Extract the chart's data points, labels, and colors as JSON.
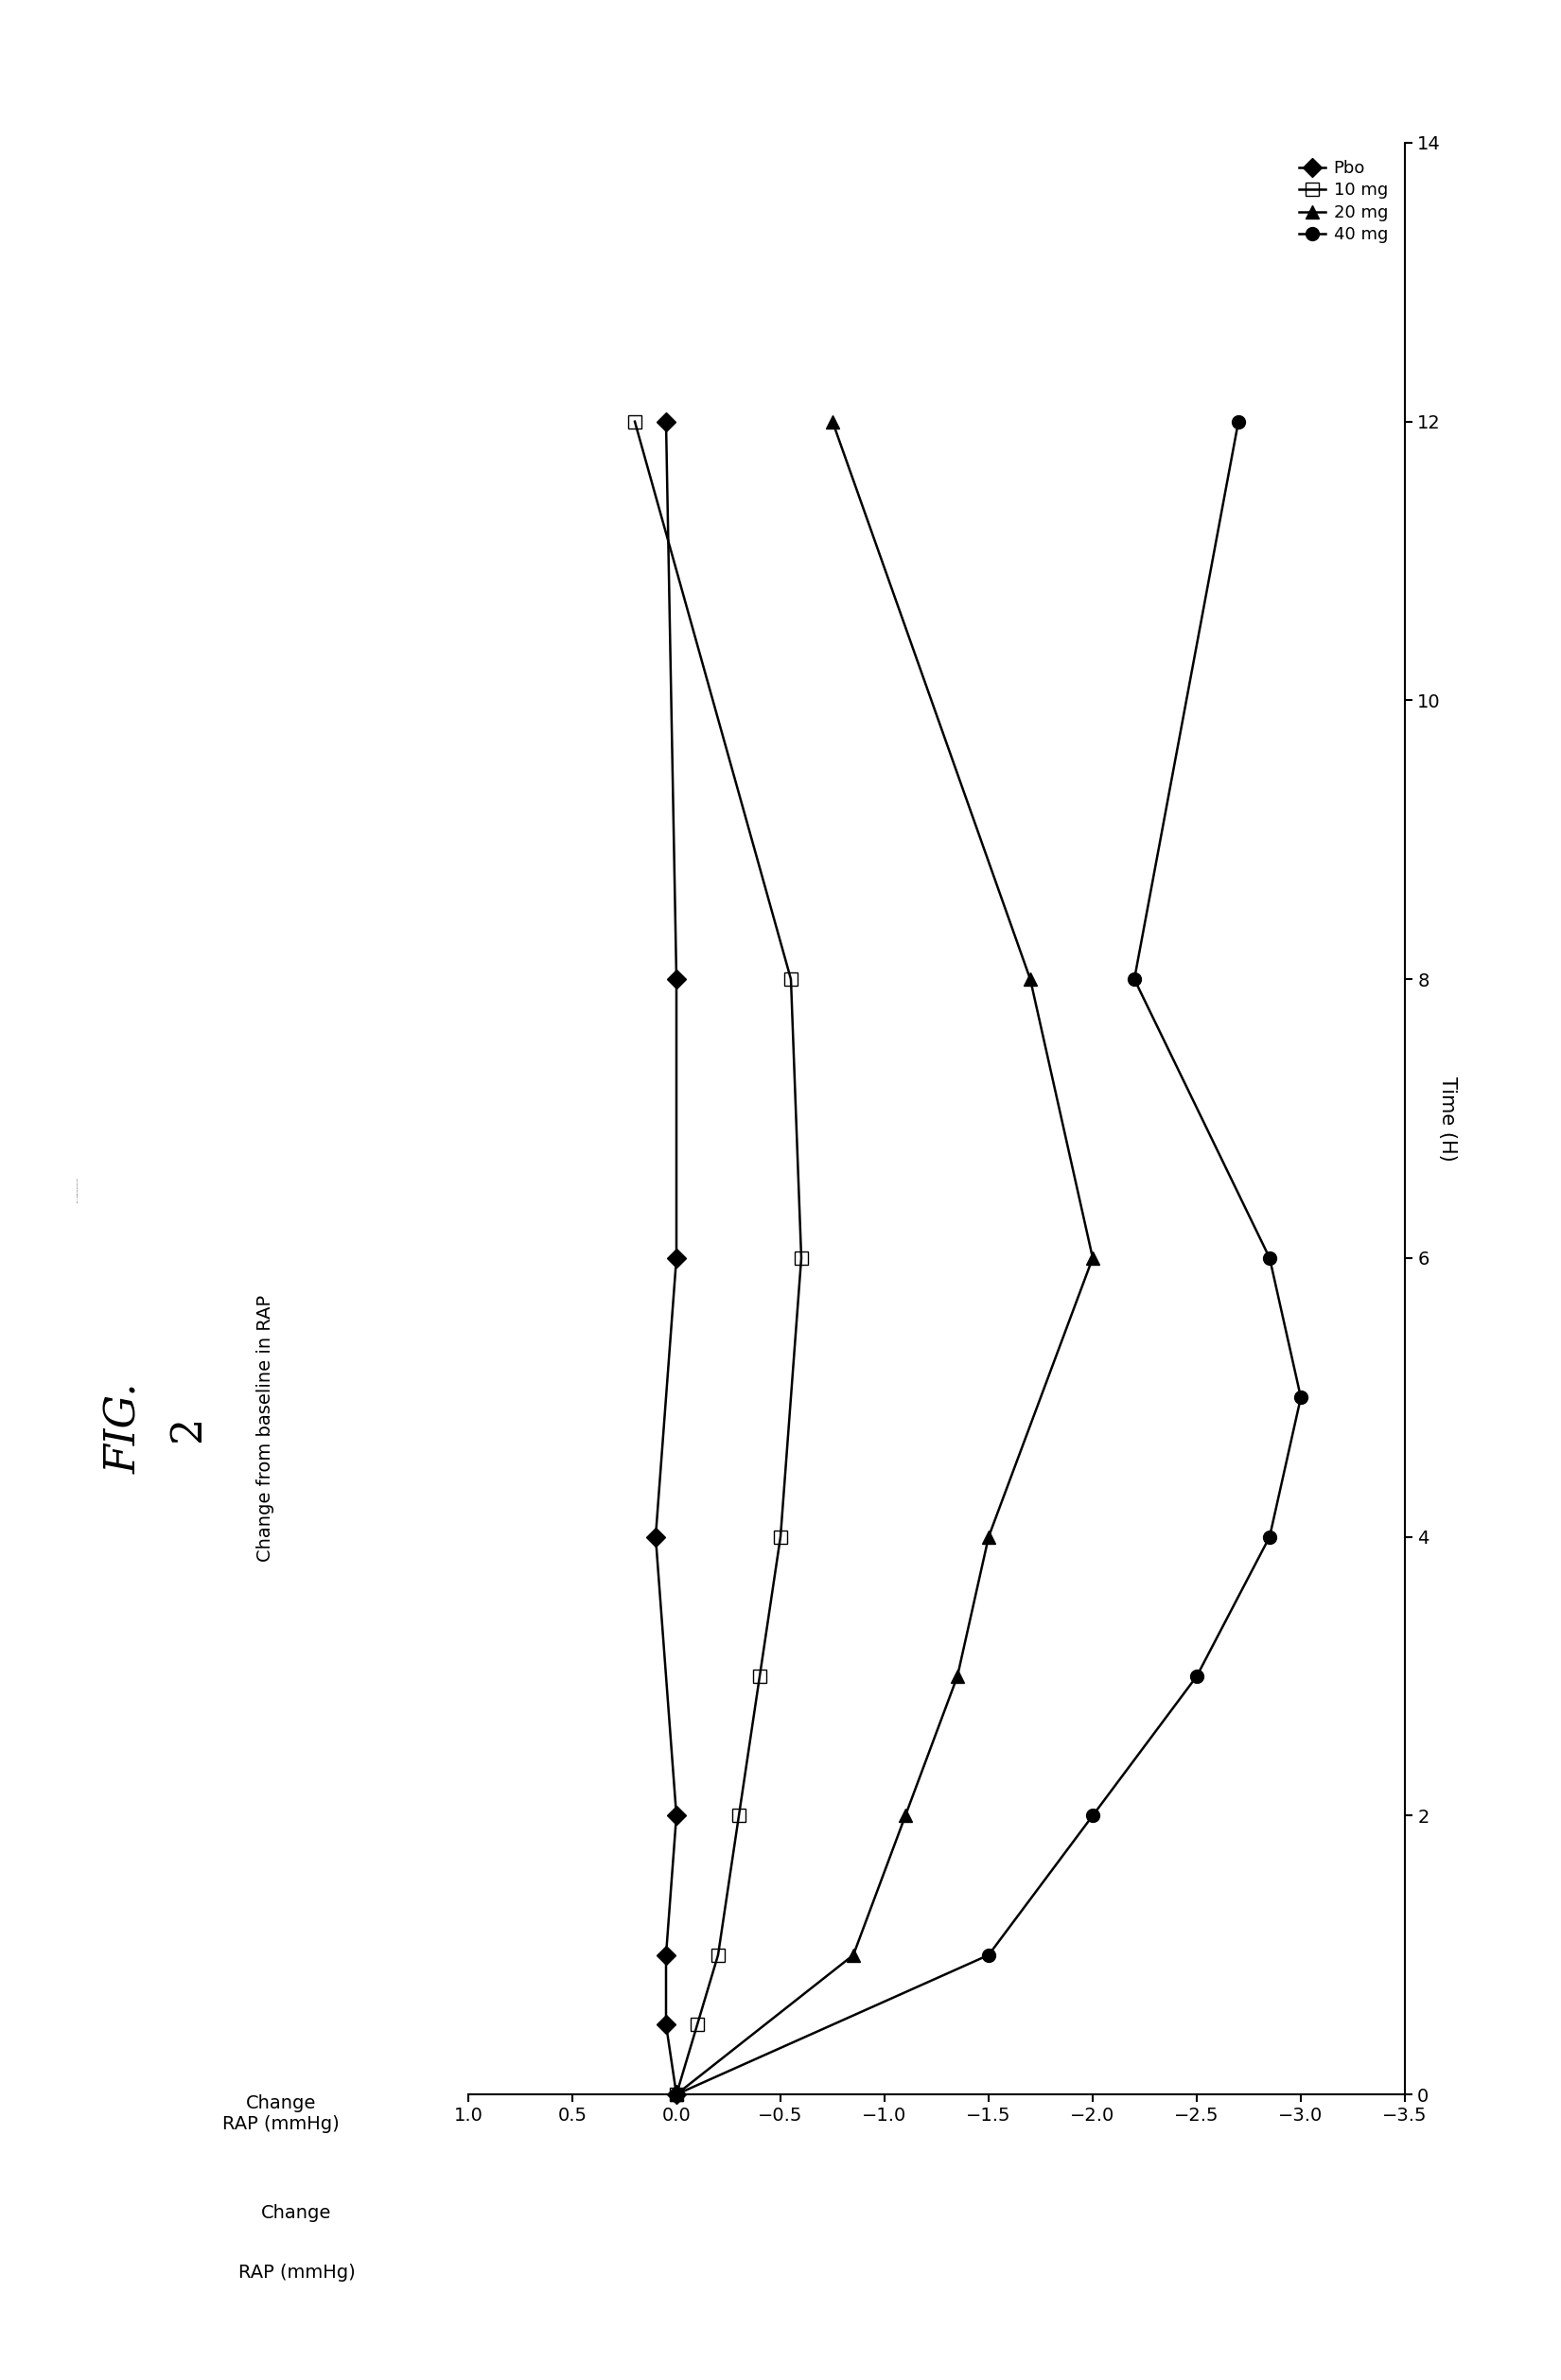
{
  "fig_label": "FIG. 2",
  "fig_subtitle": "Change from baseline in RAP",
  "xlabel": "Time (H)",
  "ylabel_line1": "Change",
  "ylabel_line2": "RAP (mmHg)",
  "legend_labels": [
    "Pbo",
    "10 mg",
    "20 mg",
    "40 mg"
  ],
  "legend_markers": [
    "D",
    "s",
    "^",
    "o"
  ],
  "legend_fills": [
    true,
    false,
    true,
    true
  ],
  "time_pbo": [
    0,
    0.5,
    1,
    2,
    4,
    6,
    8,
    12
  ],
  "change_pbo": [
    0,
    0.05,
    0.05,
    0.0,
    0.1,
    0.0,
    0.0,
    0.05
  ],
  "time_10mg": [
    0,
    0.5,
    1,
    2,
    3,
    4,
    6,
    8,
    12
  ],
  "change_10mg": [
    0,
    -0.1,
    -0.2,
    -0.3,
    -0.4,
    -0.5,
    -0.6,
    -0.55,
    0.2
  ],
  "time_20mg": [
    0,
    1,
    2,
    3,
    4,
    6,
    8,
    12
  ],
  "change_20mg": [
    0,
    -0.85,
    -1.1,
    -1.35,
    -1.5,
    -2.0,
    -1.7,
    -0.75
  ],
  "time_40mg": [
    0,
    1,
    2,
    3,
    4,
    5,
    6,
    8,
    12
  ],
  "change_40mg": [
    0,
    -1.5,
    -2.0,
    -2.5,
    -2.85,
    -3.0,
    -2.85,
    -2.2,
    -2.7
  ],
  "xlim_time": [
    0,
    14
  ],
  "ylim_change": [
    -3.5,
    1.0
  ],
  "xticks_time": [
    0,
    2,
    4,
    6,
    8,
    10,
    12,
    14
  ],
  "yticks_change": [
    1.0,
    0.5,
    0.0,
    -0.5,
    -1.0,
    -1.5,
    -2.0,
    -2.5,
    -3.0,
    -3.5
  ],
  "markersize": 10,
  "linewidth": 1.8,
  "color": "black"
}
